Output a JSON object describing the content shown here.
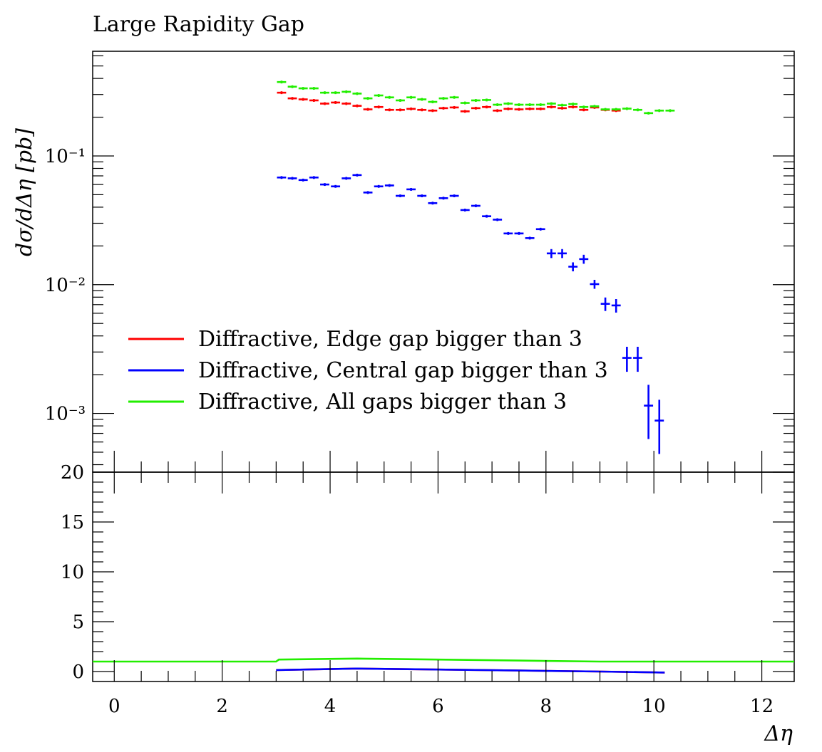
{
  "chart_data": {
    "type": "scatter",
    "title": "Large Rapidity Gap",
    "xlabel": "Δη",
    "ylabel": "dσ/dΔη [pb]",
    "xlim": [
      -0.4,
      12.6
    ],
    "ylim_log": [
      0.00035,
      0.65
    ],
    "x_ticks": [
      "0",
      "2",
      "4",
      "6",
      "8",
      "10",
      "12"
    ],
    "y_ticks": [
      "10⁻¹",
      "10⁻²",
      "10⁻³"
    ],
    "ratio_ylim": [
      -1,
      20
    ],
    "ratio_ticks": [
      "0",
      "5",
      "10",
      "15",
      "20"
    ],
    "legend_position": "lower-left",
    "series": [
      {
        "name": "Diffractive, Edge gap bigger than 3",
        "color": "#ff0000",
        "points": [
          [
            3.1,
            0.31
          ],
          [
            3.3,
            0.28
          ],
          [
            3.5,
            0.275
          ],
          [
            3.7,
            0.27
          ],
          [
            3.9,
            0.255
          ],
          [
            4.1,
            0.26
          ],
          [
            4.3,
            0.255
          ],
          [
            4.5,
            0.245
          ],
          [
            4.7,
            0.23
          ],
          [
            4.9,
            0.24
          ],
          [
            5.1,
            0.228
          ],
          [
            5.3,
            0.228
          ],
          [
            5.5,
            0.232
          ],
          [
            5.7,
            0.228
          ],
          [
            5.9,
            0.225
          ],
          [
            6.1,
            0.235
          ],
          [
            6.3,
            0.238
          ],
          [
            6.5,
            0.222
          ],
          [
            6.7,
            0.235
          ],
          [
            6.9,
            0.24
          ],
          [
            7.1,
            0.225
          ],
          [
            7.3,
            0.232
          ],
          [
            7.5,
            0.23
          ],
          [
            7.7,
            0.232
          ],
          [
            7.9,
            0.232
          ],
          [
            8.1,
            0.24
          ],
          [
            8.3,
            0.235
          ],
          [
            8.5,
            0.24
          ],
          [
            8.7,
            0.228
          ],
          [
            8.9,
            0.238
          ],
          [
            9.1,
            0.228
          ],
          [
            9.3,
            0.225
          ]
        ],
        "ratio": [
          [
            3.0,
            0.15
          ],
          [
            4.5,
            0.3
          ],
          [
            6.0,
            0.2
          ],
          [
            7.5,
            0.1
          ],
          [
            9.0,
            0.0
          ],
          [
            10.2,
            -0.1
          ]
        ]
      },
      {
        "name": "Diffractive, Central gap bigger than 3",
        "color": "#0000ff",
        "points": [
          [
            3.1,
            0.068
          ],
          [
            3.3,
            0.067
          ],
          [
            3.5,
            0.065
          ],
          [
            3.7,
            0.068
          ],
          [
            3.9,
            0.06
          ],
          [
            4.1,
            0.058
          ],
          [
            4.3,
            0.067
          ],
          [
            4.5,
            0.071
          ],
          [
            4.7,
            0.052
          ],
          [
            4.9,
            0.058
          ],
          [
            5.1,
            0.059
          ],
          [
            5.3,
            0.049
          ],
          [
            5.5,
            0.055
          ],
          [
            5.7,
            0.049
          ],
          [
            5.9,
            0.043
          ],
          [
            6.1,
            0.047
          ],
          [
            6.3,
            0.049
          ],
          [
            6.5,
            0.038
          ],
          [
            6.7,
            0.041
          ],
          [
            6.9,
            0.034
          ],
          [
            7.1,
            0.032
          ],
          [
            7.3,
            0.025
          ],
          [
            7.5,
            0.025
          ],
          [
            7.7,
            0.023
          ],
          [
            7.9,
            0.027
          ],
          [
            8.1,
            0.0175
          ],
          [
            8.3,
            0.0175
          ],
          [
            8.5,
            0.0138
          ],
          [
            8.7,
            0.0158
          ],
          [
            8.9,
            0.0101
          ],
          [
            9.1,
            0.0071
          ],
          [
            9.3,
            0.0069
          ],
          [
            9.5,
            0.0027
          ],
          [
            9.7,
            0.0027
          ],
          [
            9.9,
            0.00115
          ],
          [
            10.1,
            0.00088
          ]
        ],
        "ratio": [
          [
            3.0,
            0.15
          ],
          [
            4.5,
            0.3
          ],
          [
            6.0,
            0.2
          ],
          [
            7.5,
            0.1
          ],
          [
            9.0,
            0.0
          ],
          [
            10.2,
            -0.1
          ]
        ]
      },
      {
        "name": "Diffractive, All gaps bigger than 3",
        "color": "#22ee00",
        "points": [
          [
            3.1,
            0.375
          ],
          [
            3.3,
            0.345
          ],
          [
            3.5,
            0.335
          ],
          [
            3.7,
            0.335
          ],
          [
            3.9,
            0.31
          ],
          [
            4.1,
            0.31
          ],
          [
            4.3,
            0.315
          ],
          [
            4.5,
            0.305
          ],
          [
            4.7,
            0.28
          ],
          [
            4.9,
            0.295
          ],
          [
            5.1,
            0.285
          ],
          [
            5.3,
            0.27
          ],
          [
            5.5,
            0.285
          ],
          [
            5.7,
            0.275
          ],
          [
            5.9,
            0.263
          ],
          [
            6.1,
            0.28
          ],
          [
            6.3,
            0.285
          ],
          [
            6.5,
            0.258
          ],
          [
            6.7,
            0.27
          ],
          [
            6.9,
            0.272
          ],
          [
            7.1,
            0.25
          ],
          [
            7.3,
            0.255
          ],
          [
            7.5,
            0.25
          ],
          [
            7.7,
            0.25
          ],
          [
            7.9,
            0.25
          ],
          [
            8.1,
            0.255
          ],
          [
            8.3,
            0.248
          ],
          [
            8.5,
            0.253
          ],
          [
            8.7,
            0.24
          ],
          [
            8.9,
            0.243
          ],
          [
            9.1,
            0.23
          ],
          [
            9.3,
            0.23
          ],
          [
            9.5,
            0.233
          ],
          [
            9.7,
            0.228
          ],
          [
            9.9,
            0.215
          ],
          [
            10.1,
            0.225
          ],
          [
            10.3,
            0.225
          ]
        ],
        "ratio": [
          [
            -0.4,
            1.0
          ],
          [
            3.0,
            1.0
          ],
          [
            3.05,
            1.2
          ],
          [
            4.5,
            1.3
          ],
          [
            6.0,
            1.2
          ],
          [
            7.5,
            1.1
          ],
          [
            9.0,
            1.0
          ],
          [
            10.5,
            1.0
          ],
          [
            12.6,
            1.0
          ]
        ]
      }
    ]
  }
}
